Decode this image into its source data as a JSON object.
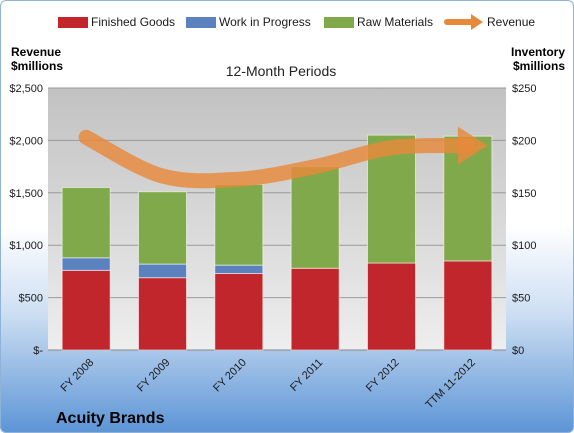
{
  "chart_data": {
    "type": "bar",
    "subtitle": "12-Month Periods",
    "company": "Acuity Brands",
    "left_axis_title": [
      "Revenue",
      "$millions"
    ],
    "right_axis_title": [
      "Inventory",
      "$millions"
    ],
    "categories": [
      "FY 2008",
      "FY 2009",
      "FY 2010",
      "FY 2011",
      "FY 2012",
      "TTM 11-2012"
    ],
    "left_ticks": [
      "$-",
      "$500",
      "$1,000",
      "$1,500",
      "$2,000",
      "$2,500"
    ],
    "right_ticks": [
      "$0",
      "$50",
      "$100",
      "$150",
      "$200",
      "$250"
    ],
    "ylim_left": [
      0,
      2500
    ],
    "ylim_right": [
      0,
      250
    ],
    "stacked": true,
    "series": [
      {
        "name": "Finished Goods",
        "axis": "right",
        "color": "#c0262b",
        "values": [
          76,
          69,
          73,
          78,
          83,
          85
        ]
      },
      {
        "name": "Work in Progress",
        "axis": "right",
        "color": "#5b82be",
        "values": [
          12,
          13,
          8,
          0,
          0,
          0
        ]
      },
      {
        "name": "Raw Materials",
        "axis": "right",
        "color": "#7fa94a",
        "values": [
          67,
          69,
          77,
          97,
          122,
          119
        ]
      },
      {
        "name": "Revenue",
        "axis": "left",
        "type": "line",
        "color": "#e8893a",
        "values": [
          2030,
          1660,
          1630,
          1750,
          1930,
          1950
        ]
      }
    ],
    "legend_position": "top",
    "grid": true
  }
}
